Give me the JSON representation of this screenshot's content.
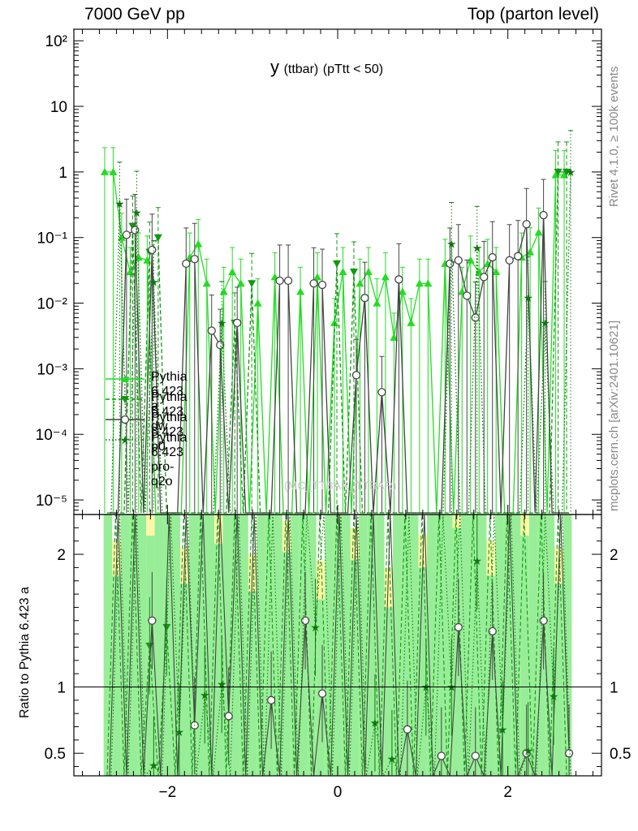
{
  "header": {
    "left": "7000 GeV pp",
    "right": "Top (parton level)"
  },
  "title": {
    "main": "y",
    "sub": "(ttbar)",
    "cut": "(pTtt < 50)"
  },
  "side_labels": {
    "rivet": "Rivet 4.1.0, ≥ 100k events",
    "mc": "mcplots.cern.ch [arXiv:2401.10621]"
  },
  "watermark": "(MC_TTBAR_TTBAR)",
  "ratio_ylabel": "Ratio to Pythia 6.423 a",
  "legend": [
    {
      "label": "Pythia 6.423 a",
      "color": "#22dd22",
      "marker": "triangle-up",
      "dash": "solid"
    },
    {
      "label": "Pythia 6.423 dw",
      "color": "#119911",
      "marker": "triangle-down",
      "dash": "dashed"
    },
    {
      "label": "Pythia 6.423 p0",
      "color": "#444444",
      "marker": "circle",
      "dash": "solid"
    },
    {
      "label": "Pythia 6.423 pro-q2o",
      "color": "#117711",
      "marker": "star",
      "dash": "dotted"
    }
  ],
  "chart_data": {
    "type": "line",
    "title": "y (ttbar) (pTtt < 50)",
    "xlabel": "",
    "ylabel": "",
    "xlim": [
      -3.1,
      3.1
    ],
    "main_ylim_log": [
      6e-06,
      150
    ],
    "ratio_ylim": [
      0.33,
      2.3
    ],
    "x_ticks": [
      "−2",
      "0",
      "2"
    ],
    "main_y_ticks": [
      "10⁻⁵",
      "10⁻⁴",
      "10⁻³",
      "10⁻²",
      "10⁻¹",
      "1",
      "10",
      "10²"
    ],
    "ratio_y_ticks": [
      "0.5",
      "1",
      "2"
    ],
    "x": [
      -2.7,
      -2.6,
      -2.5,
      -2.4,
      -2.3,
      -2.2,
      -2.1,
      -2.0,
      -1.9,
      -1.8,
      -1.7,
      -1.6,
      -1.5,
      -1.4,
      -1.3,
      -1.2,
      -1.1,
      -1.0,
      -0.9,
      -0.8,
      -0.7,
      -0.6,
      -0.5,
      -0.4,
      -0.3,
      -0.2,
      -0.1,
      0.0,
      0.1,
      0.2,
      0.3,
      0.4,
      0.5,
      0.6,
      0.7,
      0.8,
      0.9,
      1.0,
      1.1,
      1.2,
      1.3,
      1.4,
      1.5,
      1.6,
      1.7,
      1.8,
      1.9,
      2.0,
      2.1,
      2.2,
      2.3,
      2.4,
      2.5,
      2.6,
      2.7
    ],
    "series": [
      {
        "name": "Pythia 6.423 a",
        "values": [
          1.0,
          1.0,
          0.1,
          0.03,
          0.05,
          0.045,
          0.0,
          0.0,
          0.0,
          0.0,
          0.05,
          0.08,
          0.02,
          0.0,
          0.015,
          0.03,
          0.02,
          0.0,
          0.01,
          0.0,
          0.025,
          0.0,
          0.0,
          0.015,
          0.0,
          0.025,
          0.0,
          0.005,
          0.03,
          0.0,
          0.02,
          0.03,
          0.01,
          0.025,
          0.003,
          0.015,
          0.005,
          0.02,
          0.02,
          0.0,
          0.04,
          0.0,
          0.015,
          0.045,
          0.03,
          0.04,
          0.03,
          0.0,
          0.0,
          0.05,
          0.06,
          0.12,
          0.0,
          0.9,
          0.9
        ]
      },
      {
        "name": "Pythia 6.423 dw",
        "values": [
          0.0,
          0.0,
          0.0,
          0.15,
          0.0,
          0.06,
          0.1,
          0.0,
          0.0,
          0.0,
          0.0,
          0.0,
          0.0,
          0.0,
          0.0,
          0.005,
          0.0,
          0.02,
          0.0,
          0.0,
          0.0,
          0.0,
          0.0,
          0.0,
          0.0,
          0.0,
          0.0,
          0.04,
          0.0,
          0.03,
          0.0,
          0.0,
          0.0,
          0.0,
          0.0,
          0.0,
          0.0,
          0.0,
          0.0,
          0.0,
          0.0,
          0.0,
          0.0,
          0.0,
          0.0,
          0.0,
          0.0,
          0.0,
          0.0,
          0.0,
          0.0,
          0.0,
          0.0,
          1.0,
          1.0
        ]
      },
      {
        "name": "Pythia 6.423 p0",
        "values": [
          0.0,
          0.0,
          0.11,
          0.13,
          0.0,
          0.065,
          0.0,
          0.0,
          0.0,
          0.04,
          0.047,
          0.0,
          0.0038,
          0.0023,
          0.0,
          0.005,
          0.0,
          0.0,
          0.0,
          0.0,
          0.022,
          0.022,
          0.0,
          0.0,
          0.02,
          0.019,
          0.0,
          0.0,
          0.0,
          0.0008,
          0.012,
          0.0,
          0.00044,
          0.0,
          0.023,
          0.0,
          0.0,
          0.0,
          0.0,
          0.0,
          0.04,
          0.045,
          0.013,
          0.006,
          0.025,
          0.05,
          0.0,
          0.045,
          0.052,
          0.16,
          0.0,
          0.22,
          0.0,
          0.0,
          0.0
        ]
      },
      {
        "name": "Pythia 6.423 pro-q2o",
        "values": [
          0.0,
          0.33,
          0.0,
          0.24,
          0.0,
          0.021,
          0.0,
          0.0,
          0.0,
          0.0,
          0.0,
          0.0,
          0.0,
          0.005,
          0.0,
          0.0,
          0.0,
          0.0,
          0.0,
          0.0,
          0.0,
          0.0,
          0.0,
          0.0,
          0.0,
          0.0,
          0.0,
          0.0,
          0.0,
          0.0,
          0.0,
          0.0,
          0.0,
          0.0,
          0.0,
          0.0,
          0.0,
          0.0,
          0.0,
          0.0,
          0.08,
          0.0,
          0.0,
          0.07,
          0.0,
          0.0,
          0.0,
          0.0,
          0.0,
          0.012,
          0.0,
          0.005,
          0.0,
          0.0,
          1.0
        ]
      }
    ],
    "ratio_series": [
      {
        "name": "Pythia 6.423 dw",
        "values": [
          null,
          null,
          null,
          null,
          null,
          1.31,
          null,
          1.45,
          null,
          null,
          null,
          null,
          null,
          null,
          null,
          null,
          null,
          null,
          null,
          null,
          null,
          null,
          null,
          null,
          null,
          null,
          null,
          null,
          null,
          null,
          null,
          null,
          null,
          null,
          null,
          null,
          null,
          null,
          null,
          null,
          null,
          null,
          null,
          null,
          null,
          null,
          null,
          null,
          null,
          null,
          null,
          null,
          null,
          null,
          null
        ]
      },
      {
        "name": "Pythia 6.423 p0",
        "values": [
          null,
          null,
          null,
          null,
          null,
          1.5,
          null,
          null,
          null,
          null,
          0.71,
          null,
          null,
          null,
          0.78,
          null,
          null,
          null,
          null,
          0.9,
          null,
          null,
          null,
          1.5,
          null,
          0.95,
          null,
          null,
          null,
          null,
          null,
          null,
          null,
          null,
          null,
          0.68,
          null,
          null,
          null,
          0.48,
          null,
          1.45,
          null,
          0.48,
          null,
          1.42,
          null,
          null,
          null,
          0.5,
          null,
          1.5,
          null,
          null,
          0.5
        ]
      },
      {
        "name": "Pythia 6.423 pro-q2o",
        "values": [
          null,
          null,
          null,
          null,
          null,
          0.41,
          null,
          null,
          0.66,
          null,
          null,
          0.94,
          null,
          1.02,
          null,
          null,
          null,
          null,
          null,
          null,
          null,
          null,
          null,
          null,
          1.45,
          null,
          null,
          null,
          null,
          null,
          null,
          0.73,
          null,
          0.46,
          null,
          null,
          null,
          1.0,
          null,
          null,
          1.0,
          null,
          null,
          1.95,
          null,
          null,
          0.68,
          null,
          null,
          0.52,
          null,
          null,
          0.93,
          null,
          null
        ]
      }
    ]
  }
}
